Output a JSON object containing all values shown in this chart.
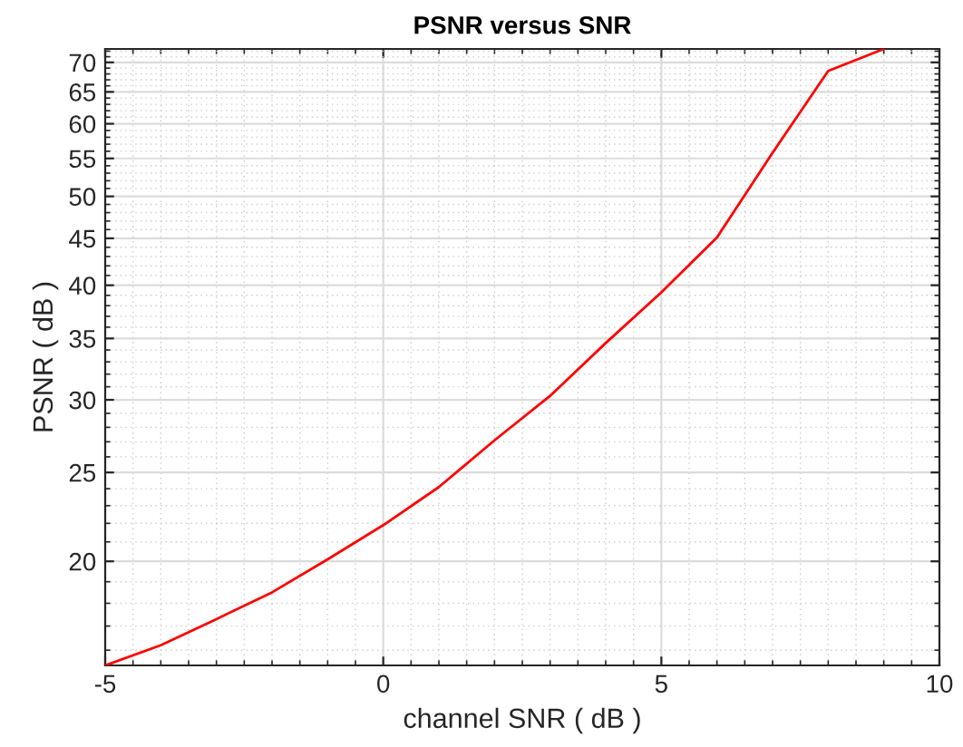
{
  "chart_data": {
    "type": "line",
    "title": "PSNR versus SNR",
    "xlabel": "channel SNR ( dB )",
    "ylabel": "PSNR ( dB )",
    "x": [
      -5,
      -4,
      -3,
      -2,
      -1,
      0,
      1,
      2,
      3,
      4,
      5,
      6,
      7,
      8,
      9
    ],
    "series": [
      {
        "color": "#ff0000",
        "values": [
          15.4,
          16.2,
          17.3,
          18.5,
          20.1,
          21.9,
          24.1,
          27.1,
          30.3,
          34.6,
          39.3,
          45.1,
          55.8,
          68.5,
          72.4
        ]
      }
    ],
    "log": "y",
    "xlim": [
      -5,
      10
    ],
    "ylim": [
      15.4,
      72.4
    ],
    "xticks": [
      -5,
      0,
      5,
      10
    ],
    "yticks": [
      20,
      25,
      30,
      35,
      40,
      45,
      50,
      55,
      60,
      65,
      70
    ],
    "grid": true,
    "marker": "none",
    "line_style": "solid"
  }
}
